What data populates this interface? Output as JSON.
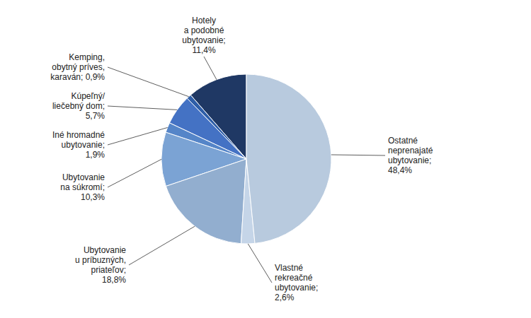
{
  "chart_data": {
    "type": "pie",
    "categories": [
      "Hotely\na podobné\nubytovanie;\n11,4%",
      "Kemping,\nobytný príves,\nkaraván; 0,9%",
      "Kúpeľný/\nliečebný dom;\n5,7%",
      "Iné hromadné\nubytovanie;\n1,9%",
      "Ubytovanie\nna súkromí;\n10,3%",
      "Ubytovanie\nu príbuzných,\npriateľov;\n18,8%",
      "Vlastné\nrekreačné\nubytovanie;\n2,6%",
      "Ostatné\nneprenajaté\nubytovanie;\n48,4%"
    ],
    "values": [
      11.4,
      0.9,
      5.7,
      1.9,
      10.3,
      18.8,
      2.6,
      48.4
    ],
    "colors": [
      "#1F3864",
      "#2E5EA8",
      "#4472C4",
      "#5585C8",
      "#7BA3D4",
      "#92AECF",
      "#C5D5E8",
      "#B8CADE"
    ]
  }
}
